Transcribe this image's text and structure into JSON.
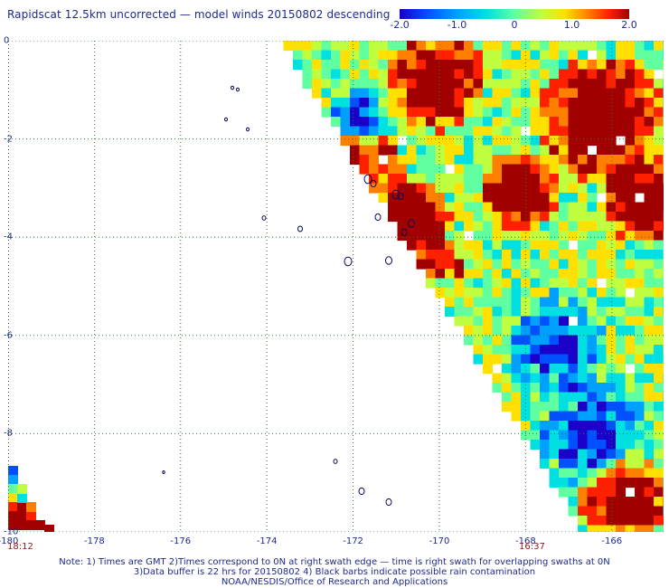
{
  "title": "Rapidscat 12.5km uncorrected — model winds 20150802 descending",
  "colorbar": {
    "ticks": [
      "-2.0",
      "-1.0",
      "0",
      "1.0",
      "2.0"
    ],
    "tick_values": [
      -2.0,
      -1.0,
      0,
      1.0,
      2.0
    ],
    "colors": [
      "#1a00c8",
      "#0050ff",
      "#00a0ff",
      "#00e0e0",
      "#60ffa0",
      "#c0ff40",
      "#ffe000",
      "#ff8000",
      "#ff2000",
      "#a00000"
    ]
  },
  "map": {
    "lon_range": [
      -180,
      -164.8
    ],
    "lat_range": [
      -10,
      0
    ],
    "x_tick_labels": [
      "-180",
      "-178",
      "-176",
      "-174",
      "-172",
      "-170",
      "-168",
      "-166"
    ],
    "x_tick_values": [
      -180,
      -178,
      -176,
      -174,
      -172,
      -170,
      -168,
      -166
    ],
    "y_tick_labels": [
      "0",
      "-2",
      "-4",
      "-6",
      "-8",
      "-10"
    ],
    "y_tick_values": [
      0,
      -2,
      -4,
      -6,
      -8,
      -10
    ],
    "grid": true,
    "grid_style": "dotted"
  },
  "swath_times": {
    "left": "18:12",
    "right": "16:37"
  },
  "notes": [
    "Note: 1) Times are GMT 2)Times correspond to 0N at right swath edge — time is right swath for overlapping swaths at 0N",
    "3)Data buffer is 22 hrs for 20150802 4) Black barbs indicate possible rain contamination",
    "NOAA/NESDIS/Office of Research and Applications"
  ]
}
